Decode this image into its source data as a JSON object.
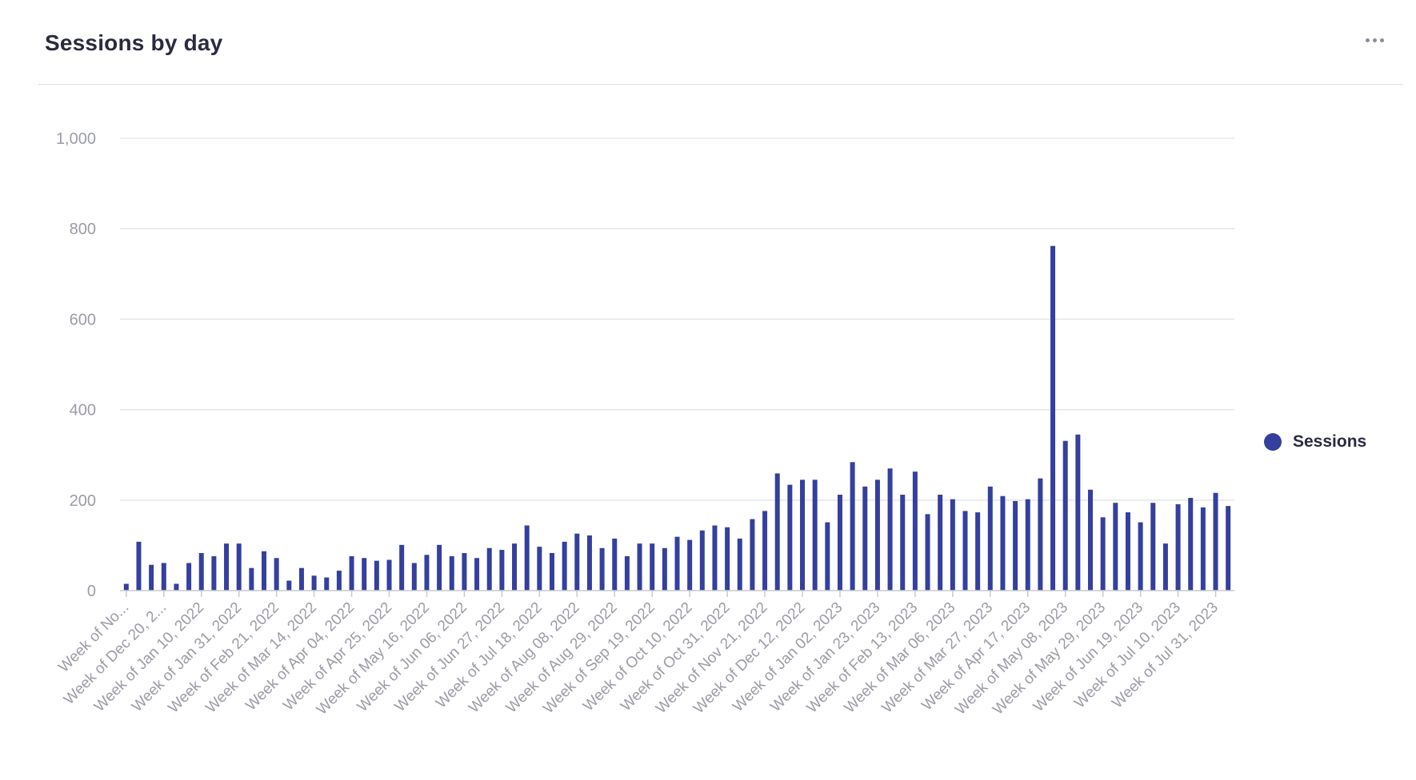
{
  "header": {
    "title": "Sessions by day",
    "menu_icon": "more-horizontal-icon"
  },
  "colors": {
    "bar": "#343f9e",
    "grid": "#e1e2e6",
    "axis": "#c9cad1",
    "tick_text": "#9b9ca6"
  },
  "legend": {
    "position": "right",
    "items": [
      {
        "label": "Sessions",
        "color": "#343f9e"
      }
    ]
  },
  "chart_data": {
    "type": "bar",
    "title": "Sessions by day",
    "xlabel": "",
    "ylabel": "",
    "ylim": [
      0,
      1000
    ],
    "yticks": [
      0,
      200,
      400,
      600,
      800,
      1000
    ],
    "ytick_labels": [
      "0",
      "200",
      "400",
      "600",
      "800",
      "1,000"
    ],
    "grid": true,
    "x_tick_labels": [
      "Week of No...",
      "Week of Dec 20, 2...",
      "Week of Jan 10, 2022",
      "Week of Jan 31, 2022",
      "Week of Feb 21, 2022",
      "Week of Mar 14, 2022",
      "Week of Apr 04, 2022",
      "Week of Apr 25, 2022",
      "Week of May 16, 2022",
      "Week of Jun 06, 2022",
      "Week of Jun 27, 2022",
      "Week of Jul 18, 2022",
      "Week of Aug 08, 2022",
      "Week of Aug 29, 2022",
      "Week of Sep 19, 2022",
      "Week of Oct 10, 2022",
      "Week of Oct 31, 2022",
      "Week of Nov 21, 2022",
      "Week of Dec 12, 2022",
      "Week of Jan 02, 2023",
      "Week of Jan 23, 2023",
      "Week of Feb 13, 2023",
      "Week of Mar 06, 2023",
      "Week of Mar 27, 2023",
      "Week of Apr 17, 2023",
      "Week of May 08, 2023",
      "Week of May 29, 2023",
      "Week of Jun 19, 2023",
      "Week of Jul 10, 2023",
      "Week of Jul 31, 2023"
    ],
    "series": [
      {
        "name": "Sessions",
        "values": [
          15,
          108,
          57,
          61,
          15,
          61,
          83,
          76,
          104,
          104,
          50,
          87,
          72,
          22,
          50,
          33,
          29,
          44,
          76,
          72,
          66,
          68,
          101,
          61,
          79,
          101,
          76,
          83,
          72,
          94,
          90,
          104,
          144,
          97,
          83,
          108,
          126,
          122,
          94,
          115,
          76,
          104,
          104,
          94,
          119,
          112,
          133,
          144,
          140,
          115,
          158,
          176,
          259,
          234,
          245,
          245,
          151,
          212,
          284,
          230,
          245,
          270,
          212,
          263,
          169,
          212,
          202,
          176,
          173,
          230,
          209,
          198,
          202,
          248,
          762,
          331,
          345,
          223,
          162,
          194,
          173,
          151,
          194,
          104,
          191,
          205,
          184,
          216,
          187
        ]
      }
    ]
  }
}
